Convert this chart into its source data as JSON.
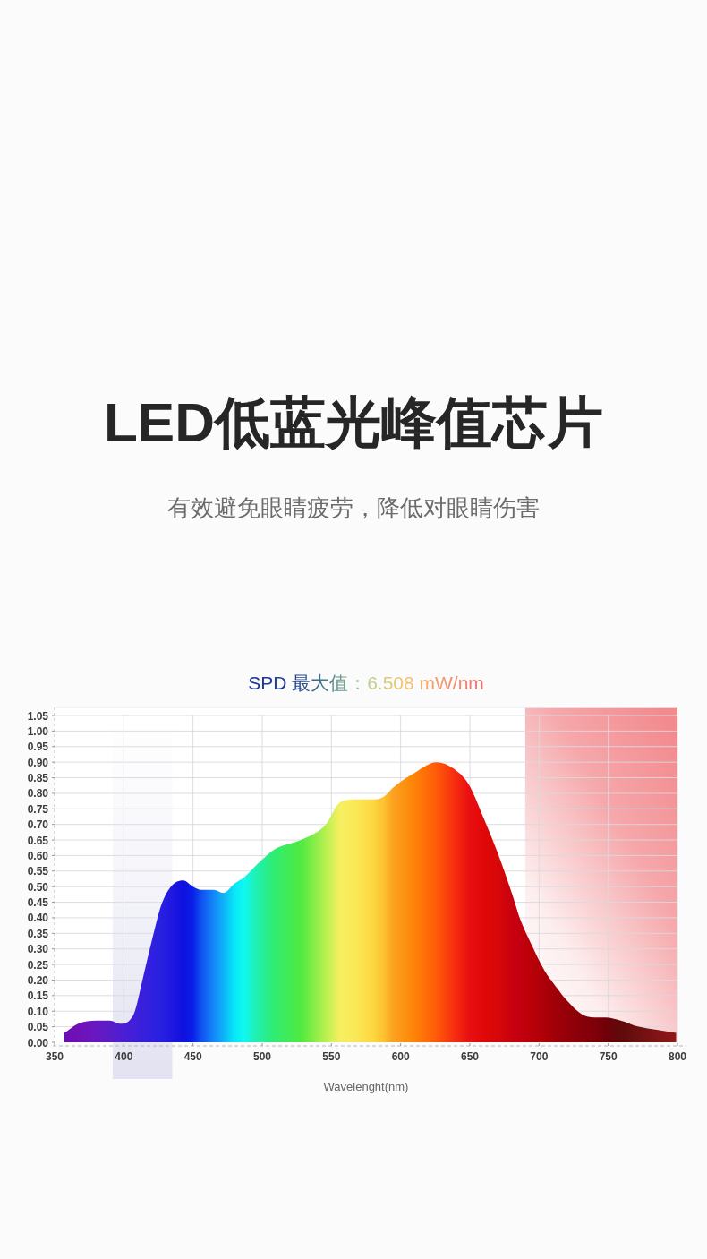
{
  "chart_data": {
    "type": "area",
    "title": "LED低蓝光峰值芯片",
    "subtitle": "有效避免眼睛疲劳，降低对眼睛伤害",
    "annotations": [
      "SPD 最大值：6.508 mW/nm"
    ],
    "xlabel": "Wavelenght(nm)",
    "x": [
      357,
      367,
      380,
      390,
      397,
      404,
      408,
      414,
      421,
      427,
      434,
      443,
      450,
      456,
      465,
      472,
      480,
      487,
      496,
      509,
      528,
      546,
      556,
      567,
      580,
      588,
      595,
      608,
      626,
      638,
      649,
      660,
      670,
      681,
      686,
      695,
      704,
      712,
      721,
      731,
      740,
      748,
      759,
      772,
      785,
      799
    ],
    "values": [
      0.03,
      0.06,
      0.07,
      0.07,
      0.06,
      0.07,
      0.1,
      0.21,
      0.34,
      0.44,
      0.5,
      0.52,
      0.5,
      0.49,
      0.49,
      0.48,
      0.51,
      0.53,
      0.57,
      0.62,
      0.65,
      0.7,
      0.77,
      0.78,
      0.78,
      0.79,
      0.82,
      0.86,
      0.9,
      0.88,
      0.83,
      0.72,
      0.61,
      0.47,
      0.4,
      0.31,
      0.23,
      0.18,
      0.13,
      0.09,
      0.08,
      0.08,
      0.07,
      0.05,
      0.04,
      0.03
    ],
    "colors": [
      "#6a0fb0",
      "#7010b8",
      "#6818c0",
      "#5a1cc8",
      "#4e1ed0",
      "#461ed6",
      "#4020d8",
      "#3820dc",
      "#3020e0",
      "#2820e0",
      "#2018e0",
      "#1010e0",
      "#0a20e8",
      "#1050f0",
      "#1488f8",
      "#10b0f8",
      "#08e8f8",
      "#10f8f0",
      "#20f0b0",
      "#30ec70",
      "#50ea40",
      "#b8f050",
      "#f6f060",
      "#fae858",
      "#fdd840",
      "#fcc030",
      "#fca020",
      "#fd8808",
      "#ff5a08",
      "#f83010",
      "#e81010",
      "#e00808",
      "#d80808",
      "#c80010",
      "#c40010",
      "#b80008",
      "#ac0008",
      "#a00008",
      "#940008",
      "#880008",
      "#800008",
      "#700008",
      "#600a0a",
      "#6e1010",
      "#801414",
      "#901818"
    ],
    "xlim": [
      350,
      800
    ],
    "xticks": [
      350,
      400,
      450,
      500,
      550,
      600,
      650,
      700,
      750,
      800
    ],
    "ylim": [
      0,
      1.05
    ],
    "yticks": [
      {
        "value": 0,
        "label": "0.00"
      },
      {
        "value": 0.05,
        "label": "0.05"
      },
      {
        "value": 0.1,
        "label": "0.10"
      },
      {
        "value": 0.15,
        "label": "0.15"
      },
      {
        "value": 0.2,
        "label": "0.20"
      },
      {
        "value": 0.25,
        "label": "0.25"
      },
      {
        "value": 0.3,
        "label": "0.30"
      },
      {
        "value": 0.35,
        "label": "0.35"
      },
      {
        "value": 0.4,
        "label": "0.40"
      },
      {
        "value": 0.45,
        "label": "0.45"
      },
      {
        "value": 0.5,
        "label": "0.50"
      },
      {
        "value": 0.55,
        "label": "0.55"
      },
      {
        "value": 0.6,
        "label": "0.60"
      },
      {
        "value": 0.65,
        "label": "0.65"
      },
      {
        "value": 0.7,
        "label": "0.70"
      },
      {
        "value": 0.75,
        "label": "0.75"
      },
      {
        "value": 0.8,
        "label": "0.80"
      },
      {
        "value": 0.85,
        "label": "0.85"
      },
      {
        "value": 0.9,
        "label": "0.90"
      },
      {
        "value": 0.95,
        "label": "0.95"
      },
      {
        "value": 1,
        "label": "1.00"
      },
      {
        "value": 1.05,
        "label": "1.05"
      }
    ],
    "grid": true,
    "bands": [
      {
        "axis": "x",
        "from": 392,
        "to": 435,
        "color": "#e2e2f2"
      },
      {
        "axis": "x",
        "from": 690,
        "to": 800,
        "color": "#f28a8e"
      }
    ]
  }
}
